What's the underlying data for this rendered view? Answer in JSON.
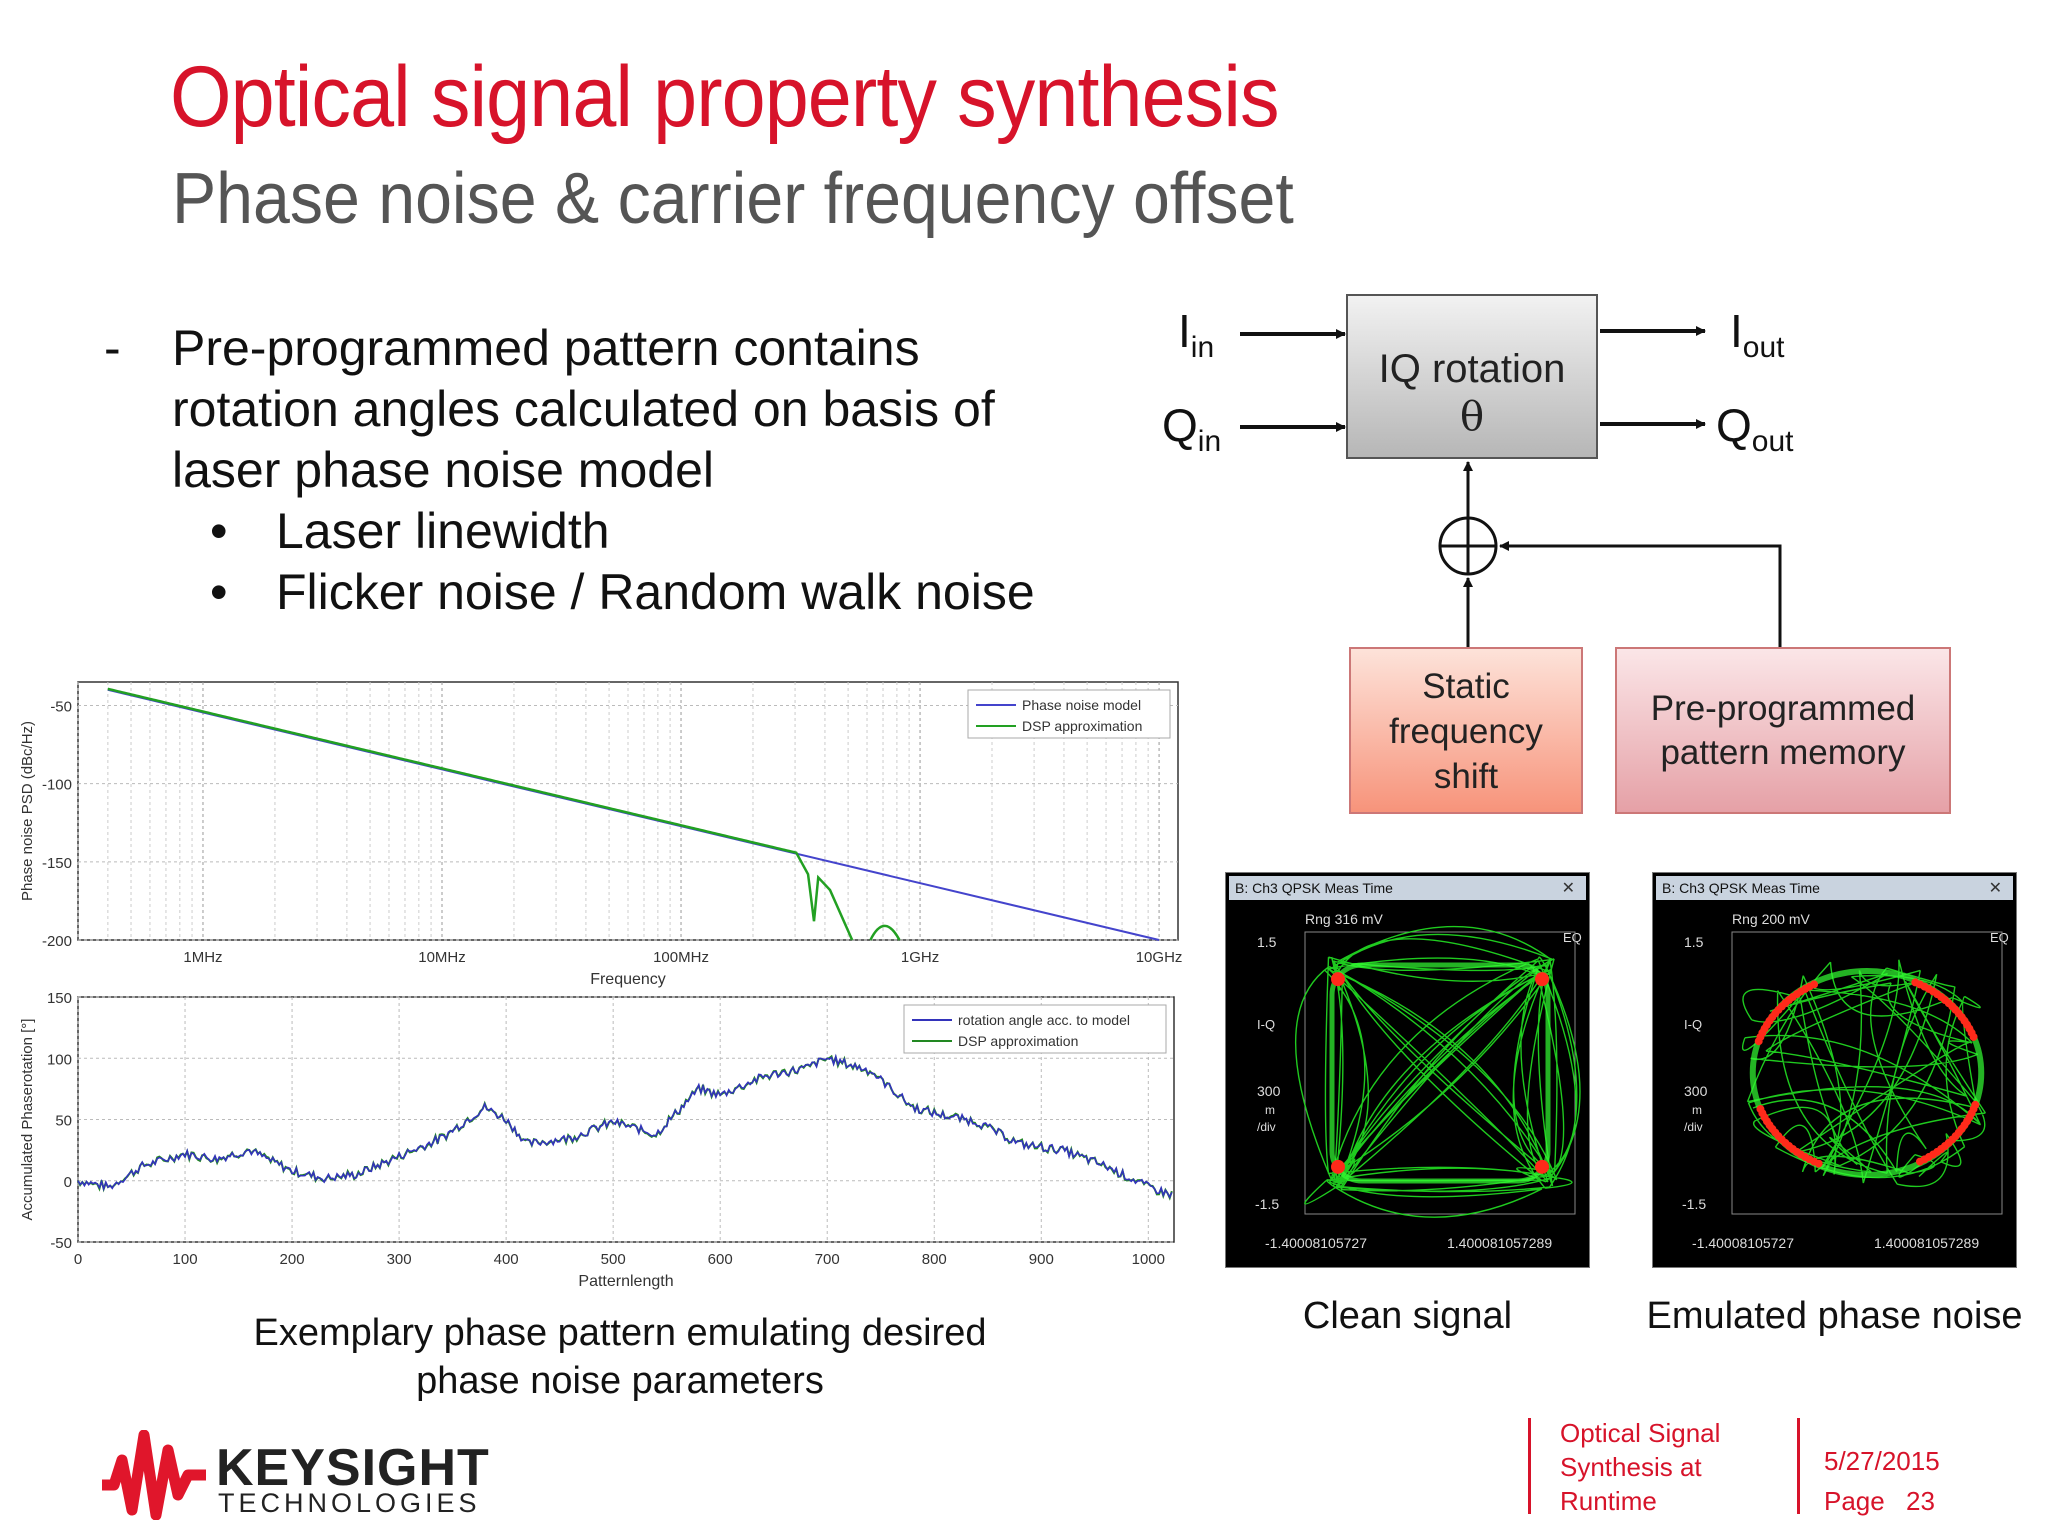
{
  "title": "Optical signal property synthesis",
  "subtitle": "Phase noise & carrier frequency offset",
  "bullets": {
    "dash": "-",
    "dot": "•",
    "main": [
      "Pre-programmed pattern contains",
      "rotation angles calculated on basis of",
      "laser phase noise model"
    ],
    "sub": [
      "Laser linewidth",
      "Flicker noise / Random walk noise"
    ]
  },
  "diagram": {
    "block_main": "IQ rotation",
    "theta": "θ",
    "inputs": {
      "i": "I",
      "i_sub": "in",
      "q": "Q",
      "q_sub": "in"
    },
    "outputs": {
      "i": "I",
      "i_sub": "out",
      "q": "Q",
      "q_sub": "out"
    },
    "static_lines": [
      "Static",
      "frequency",
      "shift"
    ],
    "memory_lines": [
      "Pre-programmed",
      "pattern memory"
    ],
    "colors": {
      "static": "#f7a08a",
      "memory": "#e8a8ae",
      "main": "#c8c8c8"
    }
  },
  "chart_data": [
    {
      "type": "line",
      "xlabel": "Frequency",
      "ylabel": "Phase noise PSD (dBc/Hz)",
      "x_scale": "log",
      "x_ticks": [
        "1MHz",
        "10MHz",
        "100MHz",
        "1GHz",
        "10GHz"
      ],
      "y_ticks": [
        "-50",
        "-100",
        "-150",
        "-200"
      ],
      "ylim": [
        -200,
        -35
      ],
      "legend_placement": "top-right",
      "series": [
        {
          "name": "Phase noise model",
          "color": "#4444cc",
          "x_hz": [
            400000,
            10000000000
          ],
          "y": [
            -40,
            -200
          ]
        },
        {
          "name": "DSP approximation",
          "color": "#22a022",
          "x_hz": [
            400000,
            300000000,
            500000000,
            1000000000
          ],
          "y": [
            -40,
            -142,
            -200,
            -185
          ]
        }
      ]
    },
    {
      "type": "line",
      "xlabel": "Patternlength",
      "ylabel": "Accumulated Phaserotation [°]",
      "x_ticks": [
        "0",
        "100",
        "200",
        "300",
        "400",
        "500",
        "600",
        "700",
        "800",
        "900",
        "1000"
      ],
      "y_ticks": [
        "150",
        "100",
        "50",
        "0",
        "-50"
      ],
      "xlim": [
        0,
        1024
      ],
      "ylim": [
        -50,
        150
      ],
      "legend_placement": "top-right",
      "series": [
        {
          "name": "rotation angle acc. to model",
          "color": "#3333bb",
          "x": [
            0,
            30,
            60,
            100,
            130,
            160,
            200,
            230,
            260,
            300,
            340,
            380,
            400,
            420,
            460,
            500,
            540,
            580,
            600,
            640,
            680,
            700,
            740,
            780,
            800,
            840,
            880,
            920,
            960,
            1000,
            1024
          ],
          "y": [
            0,
            -5,
            12,
            22,
            18,
            25,
            8,
            2,
            5,
            20,
            35,
            60,
            50,
            30,
            35,
            48,
            38,
            75,
            70,
            85,
            92,
            100,
            90,
            60,
            55,
            48,
            30,
            25,
            12,
            -5,
            -12
          ]
        },
        {
          "name": "DSP approximation",
          "color": "#228822"
        }
      ]
    }
  ],
  "chart_caption": [
    "Exemplary phase pattern emulating desired",
    "phase noise parameters"
  ],
  "scopes": [
    {
      "header": "B: Ch3 QPSK Meas Time",
      "rng": "Rng 316 mV",
      "y_top": "1.5",
      "y_mid": "I-Q",
      "y_scale": "300",
      "y_unit": "m",
      "y_div": "/div",
      "y_bot": "-1.5",
      "eq": "EQ",
      "x_left": "-1.40008105727",
      "x_right": "1.400081057289",
      "caption": "Clean signal"
    },
    {
      "header": "B: Ch3 QPSK Meas Time",
      "rng": "Rng 200 mV",
      "y_top": "1.5",
      "y_mid": "I-Q",
      "y_scale": "300",
      "y_unit": "m",
      "y_div": "/div",
      "y_bot": "-1.5",
      "eq": "EQ",
      "x_left": "-1.40008105727",
      "x_right": "1.400081057289",
      "caption": "Emulated phase noise"
    }
  ],
  "footer": {
    "logo_name": "KEYSIGHT",
    "logo_sub": "TECHNOLOGIES",
    "doc_lines": [
      "Optical Signal",
      "Synthesis at",
      "Runtime"
    ],
    "date": "5/27/2015",
    "page_label": "Page",
    "page_number": "23",
    "brand_color": "#d7132a"
  }
}
